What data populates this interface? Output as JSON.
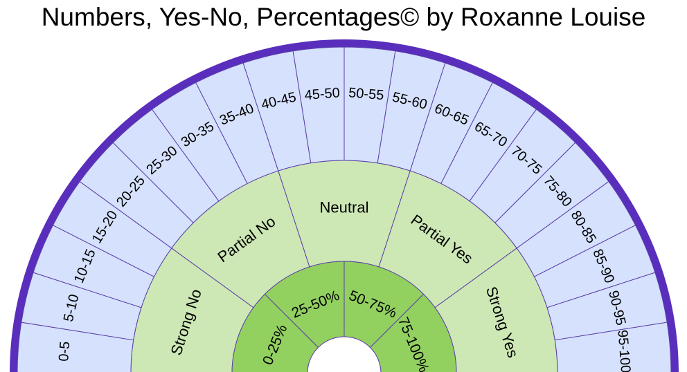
{
  "title": "Numbers, Yes-No, Percentages© by Roxanne Louise",
  "colors": {
    "rim": "#5a2ebc",
    "outer_fill": "#d5e1fd",
    "middle_fill": "#cde8b5",
    "inner_fill": "#92d060",
    "divider": "#5b3fa8",
    "center_fill": "#ffffff"
  },
  "outer_ring": [
    "0-5",
    "5-10",
    "10-15",
    "15-20",
    "20-25",
    "25-30",
    "30-35",
    "35-40",
    "40-45",
    "45-50",
    "50-55",
    "55-60",
    "60-65",
    "65-70",
    "70-75",
    "75-80",
    "80-85",
    "85-90",
    "90-95",
    "95-100"
  ],
  "middle_ring": [
    "Strong No",
    "Partial No",
    "Neutral",
    "Partial Yes",
    "Strong Yes"
  ],
  "inner_ring": [
    "0-25%",
    "25-50%",
    "50-75%",
    "75-100%"
  ]
}
